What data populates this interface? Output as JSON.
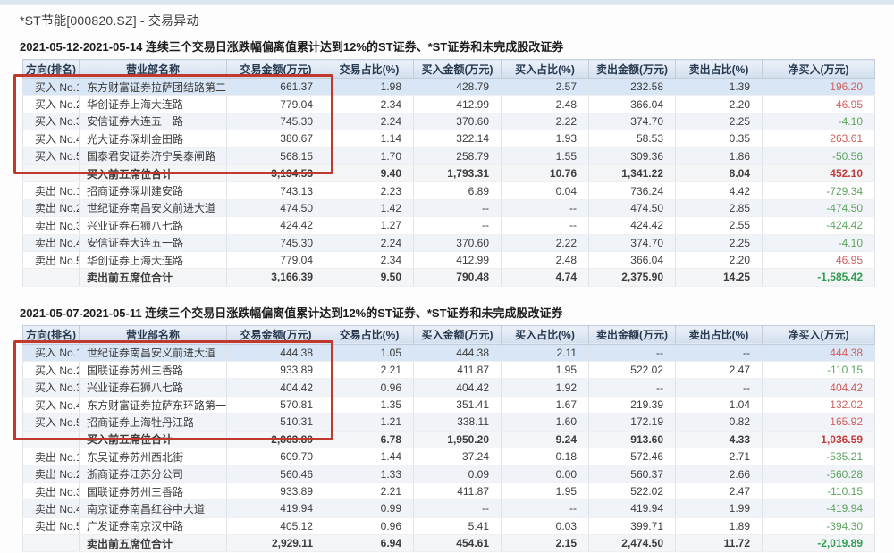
{
  "page": {
    "title": "*ST节能[000820.SZ] - 交易异动"
  },
  "colors": {
    "positive": "#d05f5f",
    "negative": "#5ea35e",
    "positive_strong": "#c13c3c",
    "negative_strong": "#2f9e53",
    "annotation_box": "#bf392f",
    "header_bg": "#d9e4f2"
  },
  "columns": [
    "方向(排名)",
    "营业部名称",
    "交易金额(万元)",
    "交易占比(%)",
    "买入金额(万元)",
    "买入占比(%)",
    "卖出金额(万元)",
    "卖出占比(%)",
    "净买入(万元)"
  ],
  "tables": [
    {
      "subtitle": "2021-05-12-2021-05-14 连续三个交易日涨跌幅偏离值累计达到12%的ST证券、*ST证券和未完成股改证券",
      "rows": [
        {
          "direction": "买入 No.1",
          "branch": "东方财富证券拉萨团结路第二",
          "values": [
            "661.37",
            "1.98",
            "428.79",
            "2.57",
            "232.58",
            "1.39"
          ],
          "net": "196.20",
          "net_sign": "pos",
          "is_summary": false
        },
        {
          "direction": "买入 No.2",
          "branch": "华创证券上海大连路",
          "values": [
            "779.04",
            "2.34",
            "412.99",
            "2.48",
            "366.04",
            "2.20"
          ],
          "net": "46.95",
          "net_sign": "pos",
          "is_summary": false
        },
        {
          "direction": "买入 No.3",
          "branch": "安信证券大连五一路",
          "values": [
            "745.30",
            "2.24",
            "370.60",
            "2.22",
            "374.70",
            "2.25"
          ],
          "net": "-4.10",
          "net_sign": "neg",
          "is_summary": false
        },
        {
          "direction": "买入 No.4",
          "branch": "光大证券深圳金田路",
          "values": [
            "380.67",
            "1.14",
            "322.14",
            "1.93",
            "58.53",
            "0.35"
          ],
          "net": "263.61",
          "net_sign": "pos",
          "is_summary": false
        },
        {
          "direction": "买入 No.5",
          "branch": "国泰君安证券济宁吴泰闸路",
          "values": [
            "568.15",
            "1.70",
            "258.79",
            "1.55",
            "309.36",
            "1.86"
          ],
          "net": "-50.56",
          "net_sign": "neg",
          "is_summary": false
        },
        {
          "direction": "",
          "branch": "买入前五席位合计",
          "values": [
            "3,134.53",
            "9.40",
            "1,793.31",
            "10.76",
            "1,341.22",
            "8.04"
          ],
          "net": "452.10",
          "net_sign": "pos",
          "is_summary": true
        },
        {
          "direction": "卖出 No.1",
          "branch": "招商证券深圳建安路",
          "values": [
            "743.13",
            "2.23",
            "6.89",
            "0.04",
            "736.24",
            "4.42"
          ],
          "net": "-729.34",
          "net_sign": "neg",
          "is_summary": false
        },
        {
          "direction": "卖出 No.2",
          "branch": "世纪证券南昌安义前进大道",
          "values": [
            "474.50",
            "1.42",
            "--",
            "--",
            "474.50",
            "2.85"
          ],
          "net": "-474.50",
          "net_sign": "neg",
          "is_summary": false
        },
        {
          "direction": "卖出 No.3",
          "branch": "兴业证券石狮八七路",
          "values": [
            "424.42",
            "1.27",
            "--",
            "--",
            "424.42",
            "2.55"
          ],
          "net": "-424.42",
          "net_sign": "neg",
          "is_summary": false
        },
        {
          "direction": "卖出 No.4",
          "branch": "安信证券大连五一路",
          "values": [
            "745.30",
            "2.24",
            "370.60",
            "2.22",
            "374.70",
            "2.25"
          ],
          "net": "-4.10",
          "net_sign": "neg",
          "is_summary": false
        },
        {
          "direction": "卖出 No.5",
          "branch": "华创证券上海大连路",
          "values": [
            "779.04",
            "2.34",
            "412.99",
            "2.48",
            "366.04",
            "2.20"
          ],
          "net": "46.95",
          "net_sign": "pos",
          "is_summary": false
        },
        {
          "direction": "",
          "branch": "卖出前五席位合计",
          "values": [
            "3,166.39",
            "9.50",
            "790.48",
            "4.74",
            "2,375.90",
            "14.25"
          ],
          "net": "-1,585.42",
          "net_sign": "neg",
          "is_summary": true
        }
      ]
    },
    {
      "subtitle": "2021-05-07-2021-05-11 连续三个交易日涨跌幅偏离值累计达到12%的ST证券、*ST证券和未完成股改证券",
      "rows": [
        {
          "direction": "买入 No.1",
          "branch": "世纪证券南昌安义前进大道",
          "values": [
            "444.38",
            "1.05",
            "444.38",
            "2.11",
            "--",
            "--"
          ],
          "net": "444.38",
          "net_sign": "pos",
          "is_summary": false
        },
        {
          "direction": "买入 No.2",
          "branch": "国联证券苏州三香路",
          "values": [
            "933.89",
            "2.21",
            "411.87",
            "1.95",
            "522.02",
            "2.47"
          ],
          "net": "-110.15",
          "net_sign": "neg",
          "is_summary": false
        },
        {
          "direction": "买入 No.3",
          "branch": "兴业证券石狮八七路",
          "values": [
            "404.42",
            "0.96",
            "404.42",
            "1.92",
            "--",
            "--"
          ],
          "net": "404.42",
          "net_sign": "pos",
          "is_summary": false
        },
        {
          "direction": "买入 No.4",
          "branch": "东方财富证券拉萨东环路第一",
          "values": [
            "570.81",
            "1.35",
            "351.41",
            "1.67",
            "219.39",
            "1.04"
          ],
          "net": "132.02",
          "net_sign": "pos",
          "is_summary": false
        },
        {
          "direction": "买入 No.5",
          "branch": "招商证券上海牡丹江路",
          "values": [
            "510.31",
            "1.21",
            "338.11",
            "1.60",
            "172.19",
            "0.82"
          ],
          "net": "165.92",
          "net_sign": "pos",
          "is_summary": false
        },
        {
          "direction": "",
          "branch": "买入前五席位合计",
          "values": [
            "2,863.80",
            "6.78",
            "1,950.20",
            "9.24",
            "913.60",
            "4.33"
          ],
          "net": "1,036.59",
          "net_sign": "pos",
          "is_summary": true
        },
        {
          "direction": "卖出 No.1",
          "branch": "东吴证券苏州西北街",
          "values": [
            "609.70",
            "1.44",
            "37.24",
            "0.18",
            "572.46",
            "2.71"
          ],
          "net": "-535.21",
          "net_sign": "neg",
          "is_summary": false
        },
        {
          "direction": "卖出 No.2",
          "branch": "浙商证券江苏分公司",
          "values": [
            "560.46",
            "1.33",
            "0.09",
            "0.00",
            "560.37",
            "2.66"
          ],
          "net": "-560.28",
          "net_sign": "neg",
          "is_summary": false
        },
        {
          "direction": "卖出 No.3",
          "branch": "国联证券苏州三香路",
          "values": [
            "933.89",
            "2.21",
            "411.87",
            "1.95",
            "522.02",
            "2.47"
          ],
          "net": "-110.15",
          "net_sign": "neg",
          "is_summary": false
        },
        {
          "direction": "卖出 No.4",
          "branch": "南京证券南昌红谷中大道",
          "values": [
            "419.94",
            "0.99",
            "--",
            "--",
            "419.94",
            "1.99"
          ],
          "net": "-419.94",
          "net_sign": "neg",
          "is_summary": false
        },
        {
          "direction": "卖出 No.5",
          "branch": "广发证券南京汉中路",
          "values": [
            "405.12",
            "0.96",
            "5.41",
            "0.03",
            "399.71",
            "1.89"
          ],
          "net": "-394.30",
          "net_sign": "neg",
          "is_summary": false
        },
        {
          "direction": "",
          "branch": "卖出前五席位合计",
          "values": [
            "2,929.11",
            "6.94",
            "454.61",
            "2.15",
            "2,474.50",
            "11.72"
          ],
          "net": "-2,019.89",
          "net_sign": "neg",
          "is_summary": true
        }
      ]
    }
  ]
}
